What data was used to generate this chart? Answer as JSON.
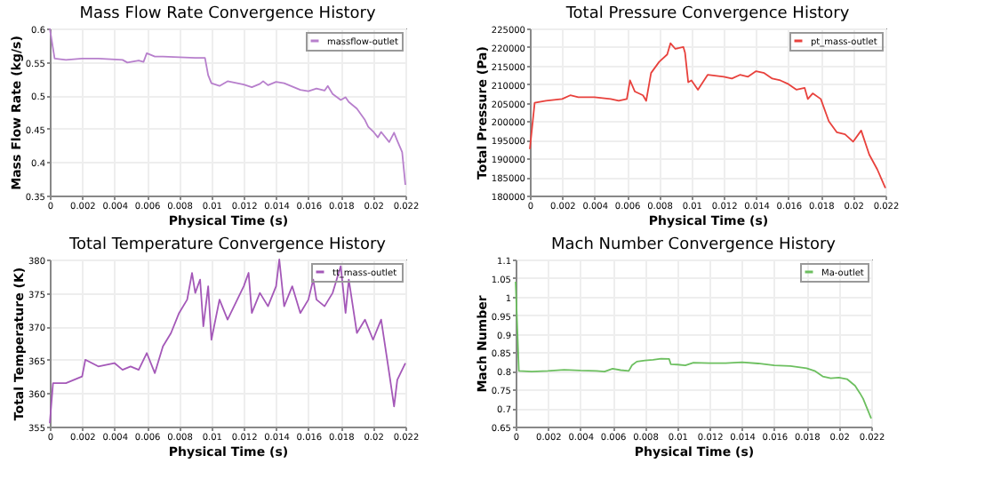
{
  "chart_data": [
    {
      "type": "line",
      "title": "Mass Flow Rate Convergence History",
      "xlabel": "Physical Time (s)",
      "ylabel": "Mass Flow Rate (kg/s)",
      "xlim": [
        0,
        0.022
      ],
      "xticks": [
        0,
        0.002,
        0.004,
        0.006,
        0.008,
        0.01,
        0.012,
        0.014,
        0.016,
        0.018,
        0.02,
        0.022
      ],
      "ylim": [
        0.35,
        0.6
      ],
      "yticks": [
        0.35,
        0.4,
        0.45,
        0.5,
        0.55,
        0.6
      ],
      "grid": true,
      "legend": "top right",
      "line_style": "solid",
      "x": [
        0,
        0.0003,
        0.001,
        0.002,
        0.003,
        0.0045,
        0.0048,
        0.0055,
        0.0058,
        0.006,
        0.0065,
        0.007,
        0.008,
        0.009,
        0.0096,
        0.0098,
        0.01,
        0.0105,
        0.011,
        0.012,
        0.0125,
        0.013,
        0.0132,
        0.0135,
        0.014,
        0.0145,
        0.015,
        0.0155,
        0.016,
        0.0165,
        0.017,
        0.0172,
        0.0175,
        0.018,
        0.0183,
        0.0185,
        0.019,
        0.0195,
        0.0197,
        0.02,
        0.0203,
        0.0205,
        0.021,
        0.0213,
        0.0215,
        0.0218,
        0.022
      ],
      "series": [
        {
          "name": "massflow-outlet",
          "color": "#b77fcc",
          "values": [
            0.6,
            0.555,
            0.553,
            0.555,
            0.555,
            0.553,
            0.549,
            0.552,
            0.55,
            0.563,
            0.558,
            0.558,
            0.557,
            0.556,
            0.556,
            0.53,
            0.518,
            0.514,
            0.521,
            0.516,
            0.512,
            0.517,
            0.521,
            0.515,
            0.52,
            0.518,
            0.513,
            0.508,
            0.506,
            0.51,
            0.507,
            0.514,
            0.502,
            0.493,
            0.497,
            0.49,
            0.48,
            0.463,
            0.453,
            0.446,
            0.437,
            0.445,
            0.43,
            0.444,
            0.432,
            0.415,
            0.366
          ]
        }
      ]
    },
    {
      "type": "line",
      "title": "Total Pressure Convergence History",
      "xlabel": "Physical Time (s)",
      "ylabel": "Total Pressure (Pa)",
      "xlim": [
        0,
        0.022
      ],
      "xticks": [
        0,
        0.002,
        0.004,
        0.006,
        0.008,
        0.01,
        0.012,
        0.014,
        0.016,
        0.018,
        0.02,
        0.022
      ],
      "ylim": [
        180000,
        225000
      ],
      "yticks": [
        180000,
        185000,
        190000,
        195000,
        200000,
        205000,
        210000,
        215000,
        220000,
        225000
      ],
      "grid": true,
      "legend": "top right",
      "line_style": "solid",
      "x": [
        0,
        0.0003,
        0.001,
        0.002,
        0.0025,
        0.003,
        0.004,
        0.005,
        0.0055,
        0.006,
        0.0062,
        0.0065,
        0.007,
        0.0072,
        0.0075,
        0.008,
        0.0085,
        0.0087,
        0.009,
        0.0095,
        0.0096,
        0.0098,
        0.01,
        0.0104,
        0.011,
        0.012,
        0.0125,
        0.013,
        0.0135,
        0.014,
        0.0145,
        0.015,
        0.0155,
        0.016,
        0.0165,
        0.017,
        0.0172,
        0.0175,
        0.018,
        0.0185,
        0.019,
        0.0195,
        0.02,
        0.0205,
        0.021,
        0.0215,
        0.0218,
        0.022
      ],
      "series": [
        {
          "name": "pt_mass-outlet",
          "color": "#e8413c",
          "values": [
            192500,
            205000,
            205500,
            206000,
            207000,
            206500,
            206500,
            206000,
            205500,
            206000,
            211000,
            208000,
            207000,
            205500,
            213000,
            216000,
            218000,
            221000,
            219500,
            220000,
            218500,
            210500,
            211000,
            208500,
            212500,
            212000,
            211500,
            212500,
            212000,
            213500,
            213000,
            211500,
            211000,
            210000,
            208500,
            209000,
            206000,
            207500,
            206000,
            200000,
            197000,
            196500,
            194500,
            197500,
            191000,
            187000,
            184000,
            182000
          ]
        }
      ]
    },
    {
      "type": "line",
      "title": "Total Temperature Convergence History",
      "xlabel": "Physical Time (s)",
      "ylabel": "Total Temperature (K)",
      "xlim": [
        0,
        0.022
      ],
      "xticks": [
        0,
        0.002,
        0.004,
        0.006,
        0.008,
        0.01,
        0.012,
        0.014,
        0.016,
        0.018,
        0.02,
        0.022
      ],
      "ylim": [
        355,
        380
      ],
      "yticks": [
        355,
        360,
        365,
        370,
        375,
        380
      ],
      "grid": true,
      "legend": "top right",
      "line_style": "solid",
      "x": [
        0,
        0.0002,
        0.001,
        0.002,
        0.0022,
        0.003,
        0.004,
        0.0045,
        0.005,
        0.0055,
        0.006,
        0.0065,
        0.007,
        0.0075,
        0.008,
        0.0085,
        0.0088,
        0.009,
        0.0093,
        0.0095,
        0.0098,
        0.01,
        0.0105,
        0.011,
        0.012,
        0.0123,
        0.0125,
        0.013,
        0.0135,
        0.014,
        0.0142,
        0.0145,
        0.015,
        0.0155,
        0.016,
        0.0163,
        0.0165,
        0.017,
        0.0175,
        0.018,
        0.0183,
        0.0185,
        0.019,
        0.0195,
        0.02,
        0.0205,
        0.021,
        0.0213,
        0.0215,
        0.022
      ],
      "series": [
        {
          "name": "tt_mass-outlet",
          "color": "#a458b8",
          "values": [
            355.5,
            361.5,
            361.5,
            362.5,
            365,
            364,
            364.5,
            363.5,
            364,
            363.5,
            366,
            363,
            367,
            369,
            372,
            374,
            378,
            375,
            377,
            370,
            376,
            368,
            374,
            371,
            376,
            378,
            372,
            375,
            373,
            376,
            380,
            373,
            376,
            372,
            374,
            377,
            374,
            373,
            375,
            379,
            372,
            377,
            369,
            371,
            368,
            371,
            363,
            358,
            362,
            364.5
          ]
        }
      ]
    },
    {
      "type": "line",
      "title": "Mach Number Convergence History",
      "xlabel": "Physical Time (s)",
      "ylabel": "Mach Number",
      "xlim": [
        0,
        0.022
      ],
      "xticks": [
        0,
        0.002,
        0.004,
        0.006,
        0.008,
        0.01,
        0.012,
        0.014,
        0.016,
        0.018,
        0.02,
        0.022
      ],
      "ylim": [
        0.65,
        1.1
      ],
      "yticks": [
        0.65,
        0.7,
        0.75,
        0.8,
        0.85,
        0.9,
        0.95,
        1,
        1.05,
        1.1
      ],
      "grid": true,
      "legend": "top right",
      "line_style": "solid",
      "x": [
        0,
        0.0002,
        0.001,
        0.002,
        0.003,
        0.004,
        0.005,
        0.0055,
        0.006,
        0.0065,
        0.007,
        0.0072,
        0.0075,
        0.008,
        0.0085,
        0.009,
        0.0095,
        0.0096,
        0.01,
        0.0105,
        0.011,
        0.012,
        0.013,
        0.014,
        0.015,
        0.016,
        0.017,
        0.0175,
        0.018,
        0.0185,
        0.019,
        0.0195,
        0.02,
        0.0205,
        0.021,
        0.0213,
        0.0215,
        0.022
      ],
      "series": [
        {
          "name": "Ma-outlet",
          "color": "#6cbf5f",
          "values": [
            1.04,
            0.8,
            0.798,
            0.8,
            0.803,
            0.801,
            0.8,
            0.798,
            0.806,
            0.802,
            0.8,
            0.815,
            0.825,
            0.828,
            0.83,
            0.833,
            0.832,
            0.818,
            0.817,
            0.815,
            0.822,
            0.821,
            0.821,
            0.823,
            0.82,
            0.815,
            0.813,
            0.81,
            0.807,
            0.8,
            0.785,
            0.78,
            0.782,
            0.778,
            0.76,
            0.74,
            0.725,
            0.672
          ]
        }
      ]
    }
  ]
}
